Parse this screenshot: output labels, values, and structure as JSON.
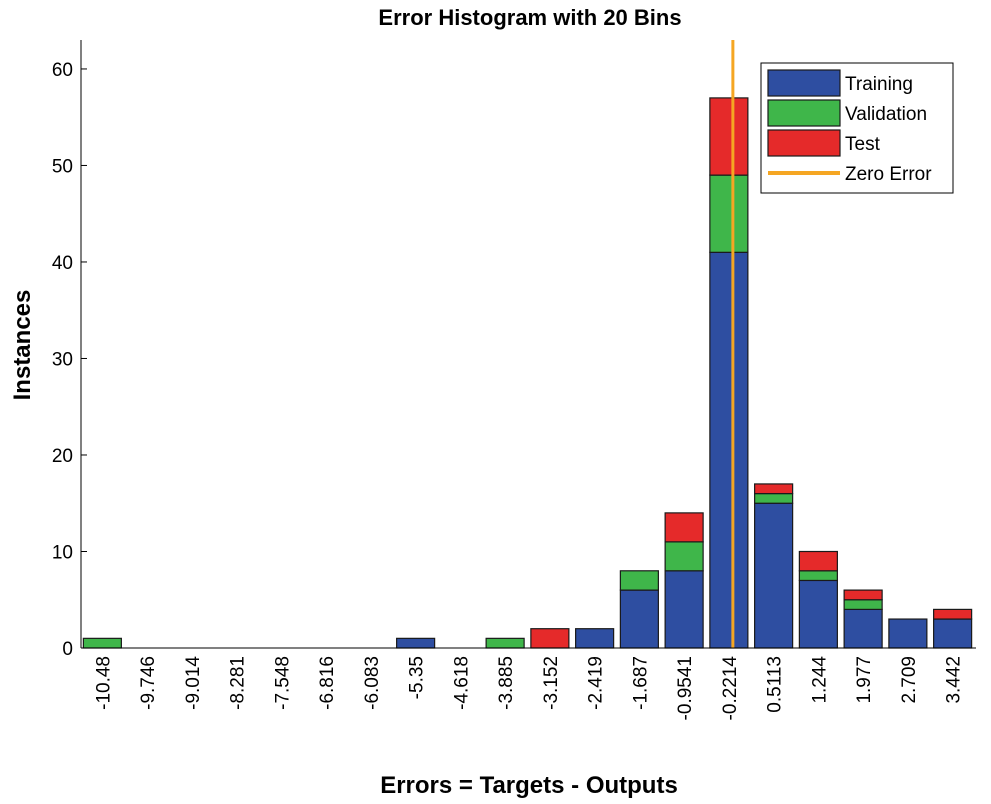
{
  "chart_data": {
    "type": "bar",
    "stacked": true,
    "title": "Error Histogram with 20 Bins",
    "xlabel": "Errors = Targets - Outputs",
    "ylabel": "Instances",
    "ylim": [
      0,
      63
    ],
    "yticks": [
      0,
      10,
      20,
      30,
      40,
      50,
      60
    ],
    "categories": [
      "-10.48",
      "-9.746",
      "-9.014",
      "-8.281",
      "-7.548",
      "-6.816",
      "-6.083",
      "-5.35",
      "-4.618",
      "-3.885",
      "-3.152",
      "-2.419",
      "-1.687",
      "-0.9541",
      "-0.2214",
      "0.5113",
      "1.244",
      "1.977",
      "2.709",
      "3.442"
    ],
    "series": [
      {
        "name": "Training",
        "color": "#2e4ea1",
        "values": [
          0,
          0,
          0,
          0,
          0,
          0,
          0,
          1,
          0,
          0,
          0,
          2,
          6,
          8,
          41,
          15,
          7,
          4,
          3,
          3
        ]
      },
      {
        "name": "Validation",
        "color": "#3fb64a",
        "values": [
          1,
          0,
          0,
          0,
          0,
          0,
          0,
          0,
          0,
          1,
          0,
          0,
          2,
          3,
          8,
          1,
          1,
          1,
          0,
          0
        ]
      },
      {
        "name": "Test",
        "color": "#e52a2a",
        "values": [
          0,
          0,
          0,
          0,
          0,
          0,
          0,
          0,
          0,
          0,
          2,
          0,
          0,
          3,
          8,
          1,
          2,
          1,
          0,
          1
        ]
      }
    ],
    "zero_error": {
      "name": "Zero Error",
      "color": "#f5a623",
      "x_category_index": 14
    },
    "legend_position": "top-right",
    "grid": false
  }
}
